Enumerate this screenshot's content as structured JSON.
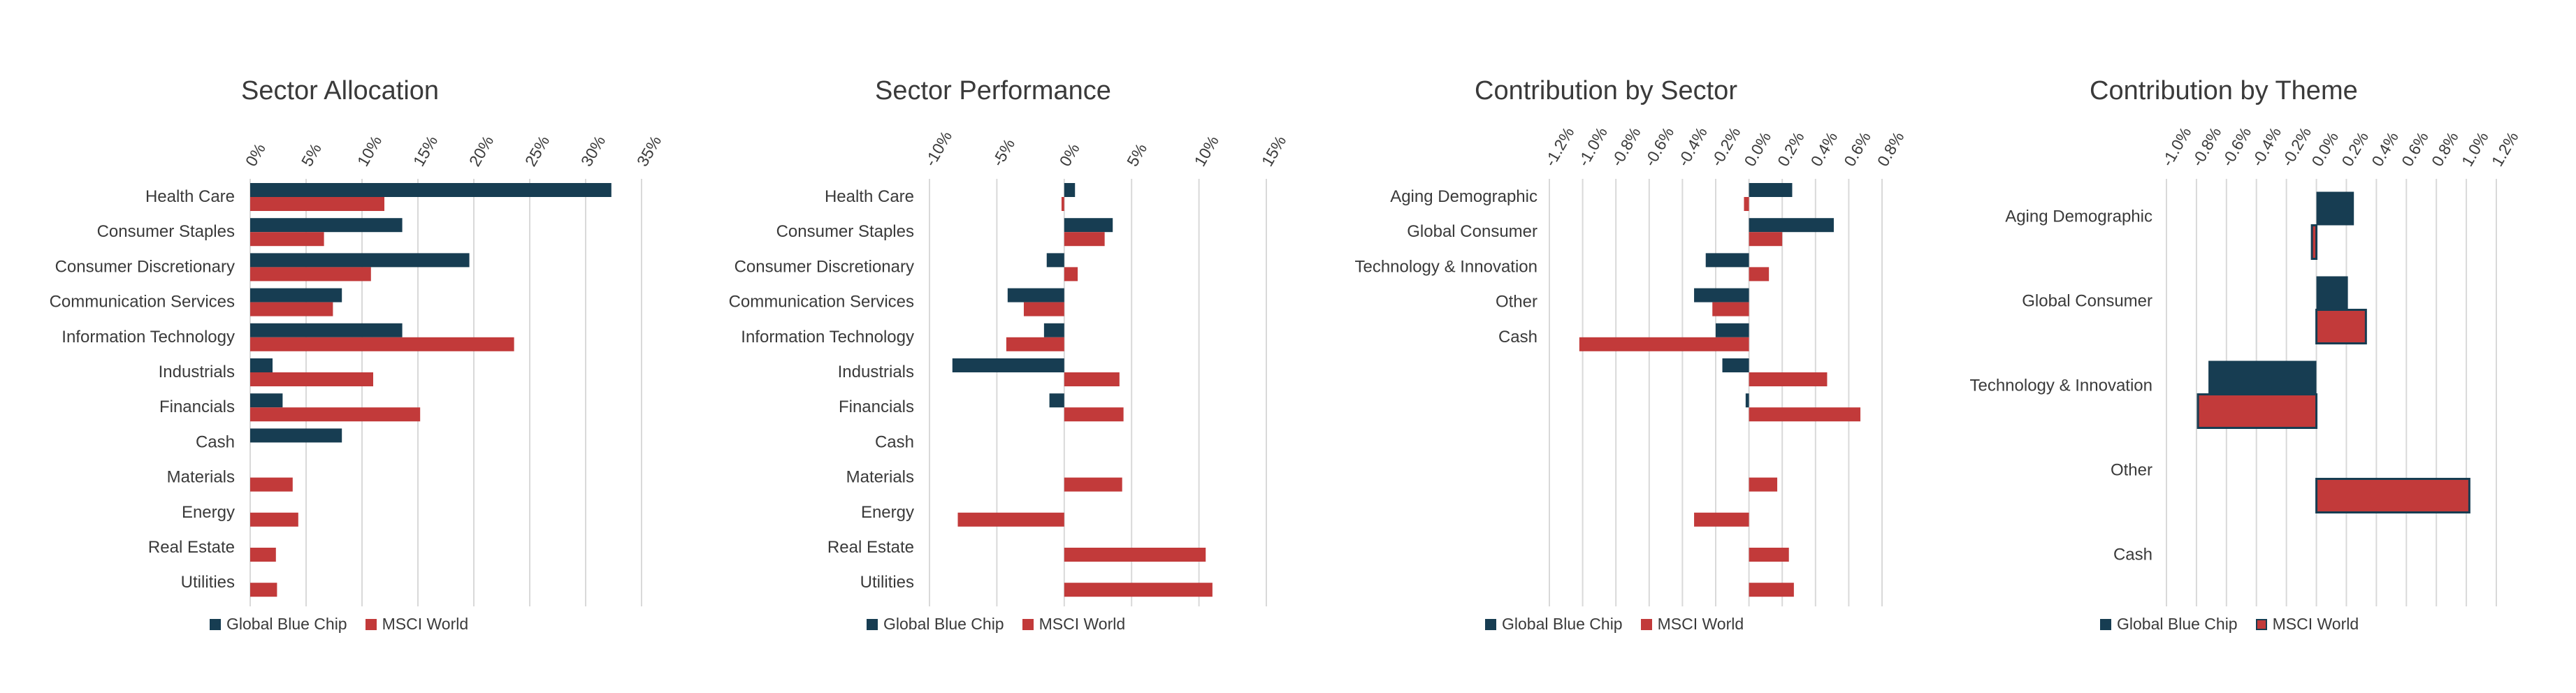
{
  "colors": {
    "series1": "#173d52",
    "series2": "#c23a3a",
    "grid": "#d9d9d9",
    "text": "#3a3a3a"
  },
  "chart_data": [
    {
      "type": "bar",
      "title": "Sector Allocation",
      "categories": [
        "Health Care",
        "Consumer Staples",
        "Consumer Discretionary",
        "Communication Services",
        "Information Technology",
        "Industrials",
        "Financials",
        "Cash",
        "Materials",
        "Energy",
        "Real Estate",
        "Utilities"
      ],
      "series": [
        {
          "name": "Global Blue Chip",
          "values": [
            32.3,
            13.6,
            19.6,
            8.2,
            13.6,
            2.0,
            2.9,
            8.2,
            0,
            0,
            0,
            0
          ]
        },
        {
          "name": "MSCI World",
          "values": [
            12.0,
            6.6,
            10.8,
            7.4,
            23.6,
            11.0,
            15.2,
            0,
            3.8,
            4.3,
            2.3,
            2.4
          ]
        }
      ],
      "xlim": [
        0,
        35
      ],
      "ticks": [
        0,
        5,
        10,
        15,
        20,
        25,
        30,
        35
      ],
      "tick_labels": [
        "0%",
        "5%",
        "10%",
        "15%",
        "20%",
        "25%",
        "30%",
        "35%"
      ],
      "legend": "bottom",
      "grid": true
    },
    {
      "type": "bar",
      "title": "Sector Performance",
      "categories": [
        "Health Care",
        "Consumer Staples",
        "Consumer Discretionary",
        "Communication Services",
        "Information Technology",
        "Industrials",
        "Financials",
        "Cash",
        "Materials",
        "Energy",
        "Real Estate",
        "Utilities"
      ],
      "series": [
        {
          "name": "Global Blue Chip",
          "values": [
            0.8,
            3.6,
            -1.3,
            -4.2,
            -1.5,
            -8.3,
            -1.1,
            0,
            0,
            0,
            0,
            0
          ]
        },
        {
          "name": "MSCI World",
          "values": [
            -0.2,
            3.0,
            1.0,
            -3.0,
            -4.3,
            4.1,
            4.4,
            0,
            4.3,
            -7.9,
            10.5,
            11.0
          ]
        }
      ],
      "xlim": [
        -10,
        15
      ],
      "ticks": [
        -10,
        -5,
        0,
        5,
        10,
        15
      ],
      "tick_labels": [
        "-10%",
        "-5%",
        "0%",
        "5%",
        "10%",
        "15%"
      ],
      "legend": "bottom",
      "grid": true
    },
    {
      "type": "bar",
      "title": "Contribution by Sector",
      "categories": [
        "Aging Demographic",
        "Global Consumer",
        "Technology & Innovation",
        "Other",
        "Cash",
        "",
        "",
        "",
        "",
        "",
        "",
        ""
      ],
      "series": [
        {
          "name": "Global Blue Chip",
          "values": [
            0.26,
            0.51,
            -0.26,
            -0.33,
            -0.2,
            -0.16,
            -0.02,
            0,
            0,
            0,
            0,
            0
          ]
        },
        {
          "name": "MSCI World",
          "values": [
            -0.03,
            0.2,
            0.12,
            -0.22,
            -1.02,
            0.47,
            0.67,
            0,
            0.17,
            -0.33,
            0.24,
            0.27
          ]
        }
      ],
      "xlim": [
        -1.2,
        0.8
      ],
      "ticks": [
        -1.2,
        -1.0,
        -0.8,
        -0.6,
        -0.4,
        -0.2,
        0,
        0.2,
        0.4,
        0.6,
        0.8
      ],
      "tick_labels": [
        "-1.2%",
        "-1.0%",
        "-0.8%",
        "-0.6%",
        "-0.4%",
        "-0.2%",
        "0.0%",
        "0.2%",
        "0.4%",
        "0.6%",
        "0.8%"
      ],
      "legend": "bottom",
      "grid": true
    },
    {
      "type": "bar",
      "title": "Contribution by Theme",
      "categories": [
        "Aging Demographic",
        "Global Consumer",
        "Technology & Innovation",
        "Other",
        "Cash"
      ],
      "series": [
        {
          "name": "Global Blue Chip",
          "values": [
            0.25,
            0.21,
            -0.72,
            0,
            0
          ]
        },
        {
          "name": "MSCI World",
          "values": [
            -0.03,
            0.33,
            -0.79,
            1.02,
            0
          ]
        }
      ],
      "xlim": [
        -1.0,
        1.2
      ],
      "ticks": [
        -1.0,
        -0.8,
        -0.6,
        -0.4,
        -0.2,
        0,
        0.2,
        0.4,
        0.6,
        0.8,
        1.0,
        1.2
      ],
      "tick_labels": [
        "-1.0%",
        "-0.8%",
        "-0.6%",
        "-0.4%",
        "-0.2%",
        "0.0%",
        "0.2%",
        "0.4%",
        "0.6%",
        "0.8%",
        "1.0%",
        "1.2%"
      ],
      "legend": "bottom",
      "grid": true
    }
  ]
}
